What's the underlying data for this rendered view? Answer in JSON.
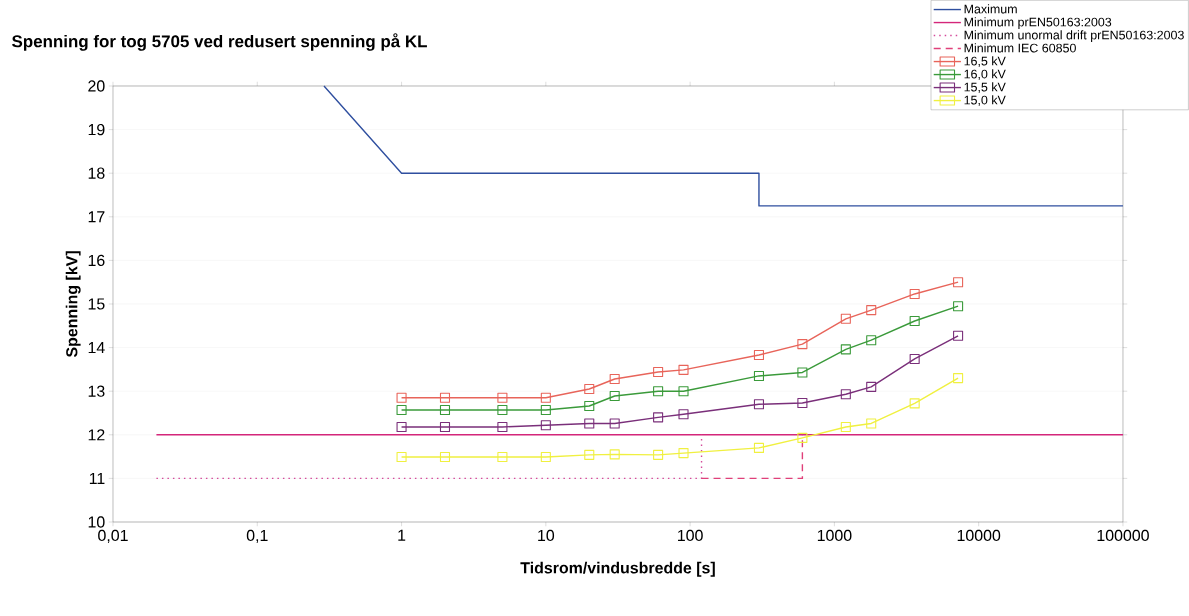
{
  "chart_data": {
    "type": "line",
    "title": "Spenning for tog 5705 ved redusert spenning på KL",
    "xlabel": "Tidsrom/vindusbredde [s]",
    "ylabel": "Spenning [kV]",
    "log": "x",
    "grid": "y",
    "legend": "top right",
    "xlim": [
      0.01,
      100000
    ],
    "ylim": [
      10,
      20
    ],
    "xticks": [
      {
        "value": 0.01,
        "label": "0,01"
      },
      {
        "value": 0.1,
        "label": "0,1"
      },
      1,
      10,
      100,
      1000,
      10000,
      100000
    ],
    "yticks": [
      10,
      11,
      12,
      13,
      14,
      15,
      16,
      17,
      18,
      19,
      20
    ],
    "x": [
      1,
      2,
      5,
      10,
      20,
      30,
      60,
      90,
      300,
      600,
      1200,
      1800,
      3600,
      7200
    ],
    "series": [
      {
        "name": "Maximum",
        "color": "#2f4f9f",
        "x": [
          0.29,
          1,
          300,
          300,
          100000
        ],
        "values": [
          20,
          18,
          18,
          17.25,
          17.25
        ],
        "marker": "none",
        "line_style": "solid"
      },
      {
        "name": "Minimum prEN50163:2003",
        "color": "#d4267a",
        "x": [
          0.02,
          100000
        ],
        "values": [
          12,
          12
        ],
        "marker": "none",
        "line_style": "solid"
      },
      {
        "name": "Minimum unormal drift prEN50163:2003",
        "color": "#d44a9a",
        "x": [
          0.02,
          120,
          120
        ],
        "values": [
          11,
          11,
          12
        ],
        "marker": "none",
        "line_style": "dotted"
      },
      {
        "name": "Minimum IEC 60850",
        "color": "#e0407a",
        "x": [
          120,
          600,
          600
        ],
        "values": [
          11,
          11,
          12
        ],
        "marker": "none",
        "line_style": "dashed"
      },
      {
        "name": "16,5 kV",
        "color": "#e8645a",
        "values": [
          12.85,
          12.85,
          12.85,
          12.85,
          13.05,
          13.28,
          13.44,
          13.49,
          13.83,
          14.08,
          14.66,
          14.86,
          15.23,
          15.5
        ],
        "marker": "square",
        "line_style": "solid"
      },
      {
        "name": "16,0 kV",
        "color": "#3a9a3a",
        "values": [
          12.57,
          12.57,
          12.57,
          12.57,
          12.66,
          12.89,
          13.0,
          13.0,
          13.35,
          13.43,
          13.96,
          14.17,
          14.61,
          14.95
        ],
        "marker": "square",
        "line_style": "solid"
      },
      {
        "name": "15,5 kV",
        "color": "#7a2f7a",
        "values": [
          12.18,
          12.18,
          12.18,
          12.22,
          12.26,
          12.26,
          12.4,
          12.47,
          12.7,
          12.73,
          12.93,
          13.1,
          13.74,
          14.27
        ],
        "marker": "square",
        "line_style": "solid"
      },
      {
        "name": "15,0 kV",
        "color": "#f0f040",
        "values": [
          11.49,
          11.49,
          11.49,
          11.49,
          11.54,
          11.55,
          11.54,
          11.58,
          11.7,
          11.93,
          12.18,
          12.26,
          12.72,
          13.3
        ],
        "marker": "square",
        "line_style": "solid"
      }
    ]
  }
}
